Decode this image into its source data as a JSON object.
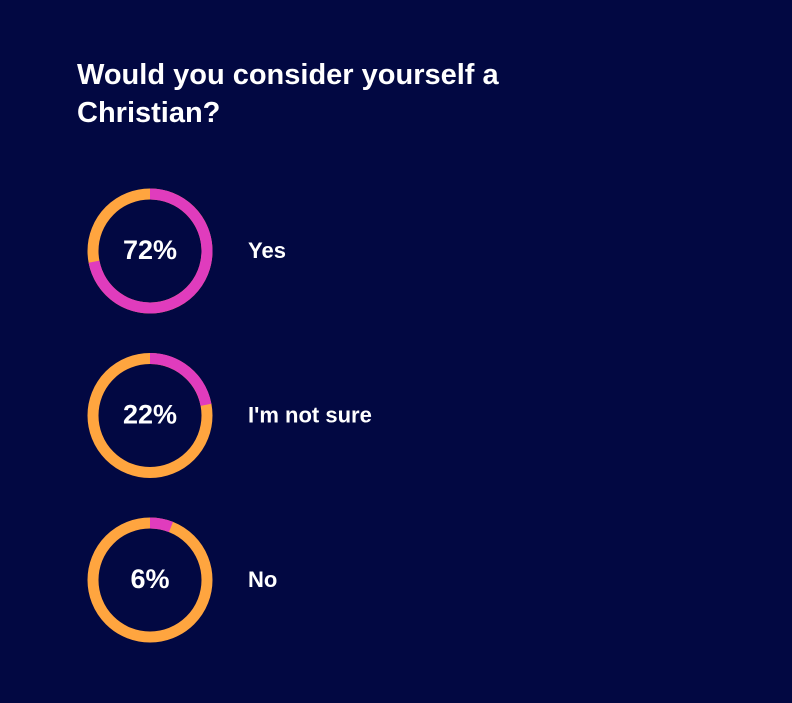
{
  "chart_data": {
    "type": "donut",
    "title": "Would you consider yourself a Christian?",
    "categories": [
      "Yes",
      "I'm not sure",
      "No"
    ],
    "values": [
      72,
      22,
      6
    ],
    "value_labels": [
      "72%",
      "22%",
      "6%"
    ],
    "color": "#e03cbd",
    "track_color": "#ffa53f"
  }
}
